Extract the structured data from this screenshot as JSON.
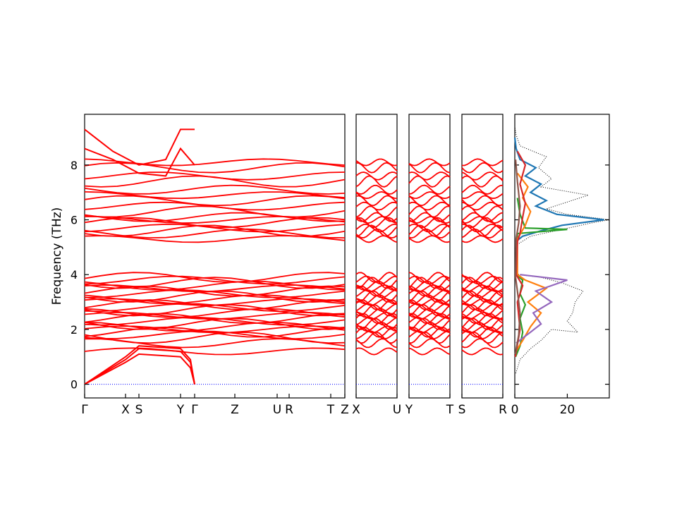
{
  "chart_data": [
    {
      "type": "line",
      "title": "",
      "ylabel": "Frequency (THz)",
      "ylim": [
        -0.5,
        9.85
      ],
      "yticks": [
        0,
        2,
        4,
        6,
        8
      ],
      "line_color": "#ff0000",
      "zero_line_color": "#0000ff",
      "panels": [
        {
          "id": "gamma-x-s-y-gamma-z-u-r-t-z",
          "xticks": [
            "Γ",
            "X",
            "S",
            "Y",
            "Γ",
            "Z",
            "U",
            "R",
            "T",
            "Z"
          ],
          "acoustic_bands": [
            [
              0,
              0.8,
              1.1,
              1.0,
              0.6,
              0
            ],
            [
              0,
              0.9,
              1.3,
              1.2,
              0.8,
              0
            ],
            [
              0,
              1.0,
              1.4,
              1.3,
              0.9,
              0
            ]
          ],
          "flat_bands": [
            1.2,
            1.5,
            1.7,
            1.8,
            1.9,
            2.0,
            2.1,
            2.2,
            2.3,
            2.4,
            2.5,
            2.6,
            2.7,
            2.8,
            2.9,
            3.0,
            3.1,
            3.2,
            3.3,
            3.4,
            3.5,
            3.6,
            3.7,
            3.8,
            3.9,
            5.3,
            5.5,
            5.6,
            5.7,
            5.9,
            6.0,
            6.1,
            6.3,
            6.5,
            6.7,
            6.9,
            7.1,
            7.4,
            7.6,
            7.9,
            8.1
          ],
          "high_bands": [
            [
              9.3,
              8.5,
              8.0,
              8.2,
              9.3,
              9.3
            ],
            [
              8.6,
              8.2,
              7.7,
              7.6,
              8.6,
              8.0
            ]
          ]
        },
        {
          "id": "z-x",
          "xticks": [
            "X"
          ]
        },
        {
          "id": "u-y",
          "xticks": [
            "U",
            "Y"
          ]
        },
        {
          "id": "t-s",
          "xticks": [
            "T",
            "S"
          ]
        },
        {
          "id": "r",
          "xticks": [
            "R"
          ]
        }
      ]
    },
    {
      "type": "line",
      "title": "",
      "xticks": [
        "0",
        "20"
      ],
      "xlim": [
        0,
        36
      ],
      "ylim": [
        -0.5,
        9.85
      ],
      "series": [
        {
          "color": "#000000",
          "dotted": true,
          "points": [
            [
              0.4,
              0.4
            ],
            [
              2,
              0.9
            ],
            [
              6,
              1.3
            ],
            [
              10,
              1.6
            ],
            [
              14,
              2.0
            ],
            [
              24,
              1.9
            ],
            [
              20,
              2.3
            ],
            [
              22,
              2.6
            ],
            [
              23,
              3.0
            ],
            [
              26,
              3.4
            ],
            [
              18,
              3.7
            ],
            [
              10,
              3.9
            ],
            [
              1,
              4.0
            ],
            [
              0,
              4.9
            ],
            [
              1,
              5.1
            ],
            [
              6,
              5.4
            ],
            [
              30,
              5.9
            ],
            [
              36,
              6.0
            ],
            [
              20,
              6.2
            ],
            [
              12,
              6.4
            ],
            [
              28,
              6.9
            ],
            [
              10,
              7.2
            ],
            [
              14,
              7.5
            ],
            [
              9,
              7.9
            ],
            [
              12,
              8.3
            ],
            [
              2,
              8.7
            ],
            [
              0.5,
              9.1
            ],
            [
              0,
              9.4
            ]
          ]
        },
        {
          "color": "#1f77b4",
          "dotted": false,
          "points": [
            [
              0.3,
              5.2
            ],
            [
              3,
              5.4
            ],
            [
              10,
              5.6
            ],
            [
              18,
              5.8
            ],
            [
              34,
              6.0
            ],
            [
              16,
              6.2
            ],
            [
              8,
              6.5
            ],
            [
              12,
              6.7
            ],
            [
              6,
              7.0
            ],
            [
              10,
              7.3
            ],
            [
              4,
              7.6
            ],
            [
              8,
              7.9
            ],
            [
              2,
              8.2
            ],
            [
              0.5,
              8.6
            ],
            [
              0,
              9.0
            ]
          ]
        },
        {
          "color": "#2ca02c",
          "dotted": false,
          "points": [
            [
              0.3,
              1.0
            ],
            [
              2,
              1.4
            ],
            [
              3,
              1.9
            ],
            [
              2,
              2.4
            ],
            [
              4,
              2.9
            ],
            [
              2,
              3.3
            ],
            [
              3,
              3.8
            ],
            [
              0.5,
              4.0
            ],
            [
              1,
              5.5
            ],
            [
              20,
              5.65
            ],
            [
              4,
              5.7
            ],
            [
              2,
              6.2
            ],
            [
              1,
              6.8
            ]
          ]
        },
        {
          "color": "#ff7f0e",
          "dotted": false,
          "points": [
            [
              0.4,
              1.2
            ],
            [
              3,
              1.6
            ],
            [
              6,
              2.1
            ],
            [
              10,
              2.6
            ],
            [
              5,
              3.0
            ],
            [
              12,
              3.5
            ],
            [
              4,
              3.8
            ],
            [
              1,
              4.0
            ],
            [
              1,
              5.3
            ],
            [
              4,
              5.8
            ],
            [
              6,
              6.3
            ],
            [
              3,
              6.8
            ],
            [
              5,
              7.2
            ],
            [
              1,
              7.7
            ]
          ]
        },
        {
          "color": "#9467bd",
          "dotted": false,
          "points": [
            [
              0.5,
              1.5
            ],
            [
              6,
              1.9
            ],
            [
              10,
              2.2
            ],
            [
              7,
              2.6
            ],
            [
              14,
              3.0
            ],
            [
              8,
              3.4
            ],
            [
              20,
              3.8
            ],
            [
              2,
              4.0
            ]
          ]
        },
        {
          "color": "#d62728",
          "dotted": false,
          "points": [
            [
              0.2,
              1.0
            ],
            [
              2,
              2.0
            ],
            [
              1,
              3.0
            ],
            [
              3,
              3.6
            ],
            [
              0.5,
              4.0
            ],
            [
              1,
              5.2
            ],
            [
              2,
              5.5
            ],
            [
              3,
              6.1
            ],
            [
              4,
              6.6
            ],
            [
              2,
              7.3
            ],
            [
              4,
              8.0
            ],
            [
              1,
              8.5
            ]
          ]
        },
        {
          "color": "#8c564b",
          "dotted": false,
          "points": [
            [
              0.2,
              1.1
            ],
            [
              1.5,
              1.8
            ],
            [
              2,
              2.6
            ],
            [
              1,
              3.4
            ],
            [
              0.3,
              3.9
            ],
            [
              0.5,
              5.3
            ],
            [
              1.5,
              5.9
            ],
            [
              2,
              6.5
            ],
            [
              1,
              7.4
            ],
            [
              0.3,
              8.2
            ]
          ]
        }
      ]
    }
  ]
}
